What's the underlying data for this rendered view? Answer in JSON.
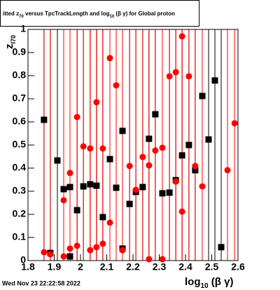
{
  "chart_data": {
    "type": "scatter",
    "title": [
      "itted  z",
      "70",
      " versus TpcTrackLength and log",
      "10",
      " (β γ) for Global proton"
    ],
    "x_label": [
      "log",
      "10",
      " (β γ)"
    ],
    "y_label": [
      "z",
      "I70"
    ],
    "footer": "Wed Nov 23 22:22:58 2022",
    "xlim": [
      1.8,
      2.6
    ],
    "ylim": [
      0,
      1
    ],
    "xticks": [
      1.8,
      1.9,
      2,
      2.1,
      2.2,
      2.3,
      2.4,
      2.5,
      2.6
    ],
    "yticks": [
      0,
      0.1,
      0.2,
      0.3,
      0.4,
      0.5,
      0.6,
      0.7,
      0.8,
      0.9,
      1
    ],
    "series": [
      {
        "color": "#000000",
        "marker": "square",
        "x": [
          1.861,
          1.885,
          1.912,
          1.936,
          1.96,
          1.96,
          1.987,
          2.011,
          2.037,
          2.061,
          2.085,
          2.112,
          2.136,
          2.16,
          2.16,
          2.187,
          2.211,
          2.237,
          2.261,
          2.285,
          2.312,
          2.339,
          2.363,
          2.387,
          2.413,
          2.437,
          2.464,
          2.488,
          2.512,
          2.536
        ],
        "values": [
          0.609,
          0.033,
          0.433,
          0.309,
          0.318,
          0.018,
          0.218,
          0.321,
          0.33,
          0.324,
          0.188,
          0.439,
          0.315,
          0.561,
          0.052,
          0.245,
          0.297,
          0.318,
          0.527,
          0.633,
          0.291,
          0.294,
          0.348,
          0.455,
          0.5,
          0.391,
          0.712,
          0.524,
          0.779,
          0.058
        ]
      },
      {
        "color": "#ff0000",
        "marker": "circle",
        "x": [
          1.861,
          1.885,
          1.936,
          1.936,
          1.96,
          1.96,
          1.987,
          1.987,
          2.011,
          2.037,
          2.037,
          2.061,
          2.061,
          2.085,
          2.085,
          2.112,
          2.112,
          2.136,
          2.16,
          2.187,
          2.211,
          2.237,
          2.261,
          2.261,
          2.285,
          2.312,
          2.312,
          2.339,
          2.363,
          2.363,
          2.387,
          2.387,
          2.413,
          2.437,
          2.464,
          2.56,
          2.587
        ],
        "values": [
          0.036,
          0.027,
          0.261,
          0.018,
          0.379,
          0.052,
          0.621,
          0.064,
          0.494,
          0.485,
          0.045,
          0.685,
          0.058,
          0.485,
          0.073,
          0.876,
          0.164,
          0.758,
          0.045,
          0.409,
          0.306,
          0.448,
          0.006,
          0.412,
          0.476,
          0.488,
          0.006,
          0.797,
          0.342,
          0.815,
          0.97,
          0.212,
          0.797,
          0.409,
          0.321,
          0.391,
          0.594
        ]
      }
    ]
  }
}
